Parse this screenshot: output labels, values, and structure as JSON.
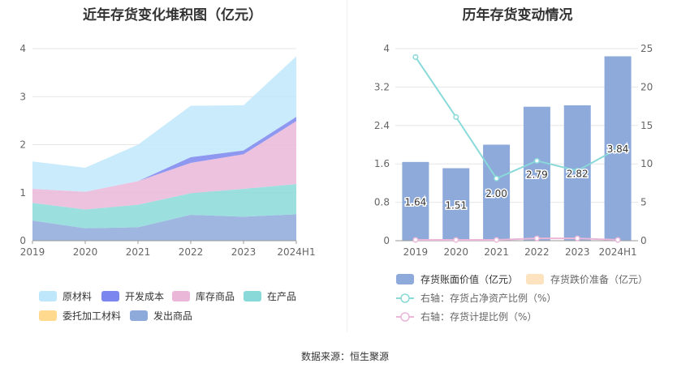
{
  "source": "数据来源：恒生聚源",
  "chart_data": [
    {
      "type": "area",
      "stacked": true,
      "title": "近年存货变化堆积图（亿元）",
      "categories": [
        "2019",
        "2020",
        "2021",
        "2022",
        "2023",
        "2024H1"
      ],
      "yticks": [
        "0",
        "1",
        "2",
        "3",
        "4"
      ],
      "ylim": [
        0,
        4
      ],
      "series": [
        {
          "name": "发出商品",
          "color": "#8eaadb",
          "values": [
            0.42,
            0.26,
            0.28,
            0.54,
            0.5,
            0.55
          ]
        },
        {
          "name": "委托加工材料",
          "color": "#ffd98e",
          "values": [
            0,
            0,
            0,
            0,
            0,
            0
          ]
        },
        {
          "name": "在产品",
          "color": "#8ad9d9",
          "values": [
            0.37,
            0.39,
            0.47,
            0.45,
            0.58,
            0.63
          ]
        },
        {
          "name": "库存商品",
          "color": "#eab7d9",
          "values": [
            0.29,
            0.37,
            0.49,
            0.63,
            0.72,
            1.31
          ]
        },
        {
          "name": "开发成本",
          "color": "#7b86ee",
          "values": [
            0,
            0,
            0,
            0.12,
            0.08,
            0.09
          ]
        },
        {
          "name": "原材料",
          "color": "#bfe7fb",
          "values": [
            0.57,
            0.5,
            0.76,
            1.07,
            0.94,
            1.26
          ]
        }
      ],
      "legend_order": [
        "原材料",
        "开发成本",
        "库存商品",
        "在产品",
        "委托加工材料",
        "发出商品"
      ]
    },
    {
      "type": "bar+line",
      "title": "历年存货变动情况",
      "categories": [
        "2019",
        "2020",
        "2021",
        "2022",
        "2023",
        "2024H1"
      ],
      "left_yticks": [
        "0",
        "0.8",
        "1.6",
        "2.4",
        "3.2",
        "4"
      ],
      "left_ylim": [
        0,
        4
      ],
      "right_yticks": [
        "0",
        "5",
        "10",
        "15",
        "20",
        "25"
      ],
      "right_ylim": [
        0,
        25
      ],
      "bars": {
        "name": "存货账面价值（亿元）",
        "color": "#8eaadb",
        "values": [
          1.64,
          1.51,
          2.0,
          2.79,
          2.82,
          3.84
        ],
        "labels": [
          "1.64",
          "1.51",
          "2.00",
          "2.79",
          "2.82",
          "3.84"
        ]
      },
      "bars2": {
        "name": "存货跌价准备（亿元）",
        "color": "#fde3c0",
        "values": [
          0,
          0,
          0,
          0,
          0,
          0
        ]
      },
      "line1": {
        "name": "右轴：存货占净资产比例（%）",
        "color": "#8ad9d9",
        "values": [
          23.9,
          16.1,
          8.1,
          10.4,
          9.1,
          12.0
        ]
      },
      "line2": {
        "name": "右轴：存货计提比例（%）",
        "color": "#eab7d9",
        "values": [
          0.1,
          0.1,
          0.1,
          0.3,
          0.3,
          0.1
        ]
      }
    }
  ]
}
